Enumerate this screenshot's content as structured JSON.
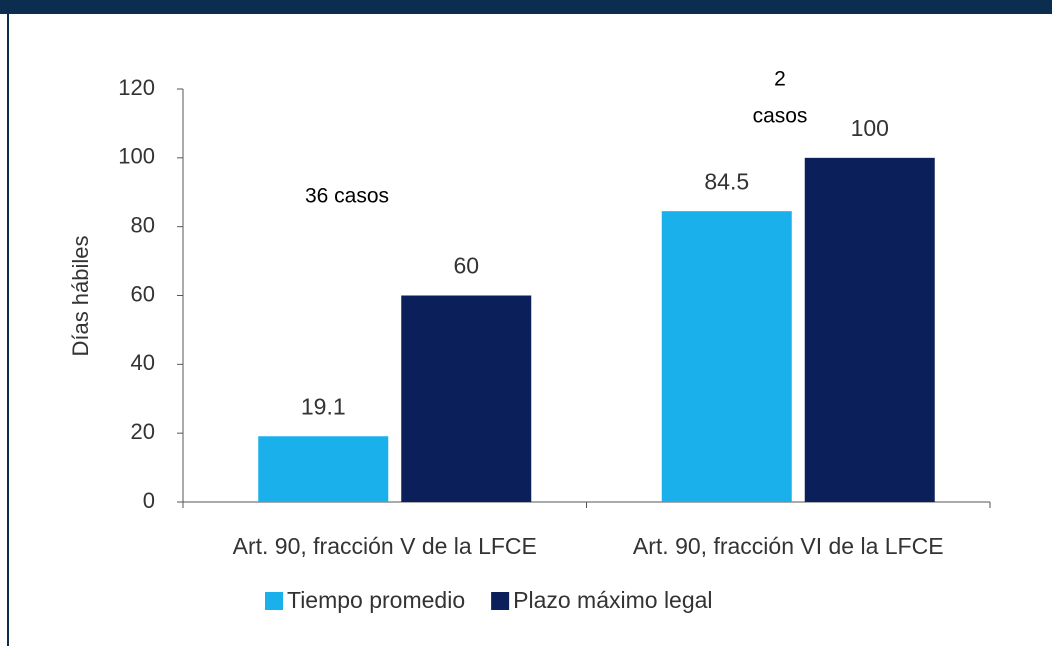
{
  "chart_data": {
    "type": "bar",
    "y_label": "Días hábiles",
    "categories": [
      "Art. 90, fracción V de la LFCE",
      "Art. 90, fracción VI de la LFCE"
    ],
    "series": [
      {
        "name": "Tiempo promedio",
        "color": "#19b0ec",
        "values": [
          19.1,
          84.5
        ]
      },
      {
        "name": "Plazo máximo legal",
        "color": "#0b1f5b",
        "values": [
          60,
          100
        ]
      }
    ],
    "annotations": [
      {
        "text": [
          "36 casos"
        ]
      },
      {
        "text": [
          "2",
          "casos"
        ]
      }
    ],
    "ylim": [
      0,
      120
    ],
    "yticks": [
      0,
      20,
      40,
      60,
      80,
      100,
      120
    ]
  }
}
